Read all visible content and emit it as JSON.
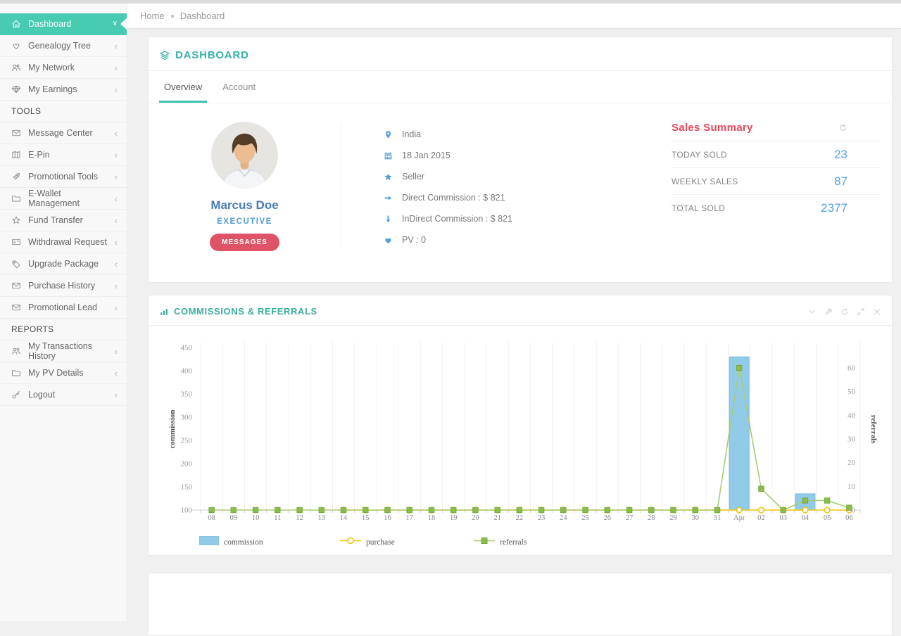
{
  "topbar": {
    "breadcrumb": [
      "Home",
      "Dashboard"
    ]
  },
  "sidebar": {
    "items": [
      {
        "label": "Dashboard",
        "icon": "home-icon",
        "active": true
      },
      {
        "label": "Genealogy Tree",
        "icon": "hand-heart-icon"
      },
      {
        "label": "My Network",
        "icon": "users-icon"
      },
      {
        "label": "My Earnings",
        "icon": "diamond-icon"
      },
      {
        "header": "TOOLS"
      },
      {
        "label": "Message Center",
        "icon": "envelope-icon"
      },
      {
        "label": "E-Pin",
        "icon": "booklet-icon"
      },
      {
        "label": "Promotional Tools",
        "icon": "rocket-icon"
      },
      {
        "label": "E-Wallet Management",
        "icon": "wallet-icon"
      },
      {
        "label": "Fund Transfer",
        "icon": "star-icon"
      },
      {
        "label": "Withdrawal Request",
        "icon": "card-icon"
      },
      {
        "label": "Upgrade Package",
        "icon": "tag-icon"
      },
      {
        "label": "Purchase History",
        "icon": "envelope-icon"
      },
      {
        "label": "Promotional Lead",
        "icon": "envelope-icon"
      },
      {
        "header": "REPORTS"
      },
      {
        "label": "My Transactions History",
        "icon": "users-icon"
      },
      {
        "label": "My PV Details",
        "icon": "wallet-icon"
      },
      {
        "label": "Logout",
        "icon": "key-icon"
      }
    ]
  },
  "page": {
    "title": "DASHBOARD",
    "tabs": [
      {
        "label": "Overview",
        "active": true
      },
      {
        "label": "Account",
        "active": false
      }
    ]
  },
  "profile": {
    "name": "Marcus Doe",
    "rank": "EXECUTIVE",
    "button_label": "MESSAGES",
    "details": [
      {
        "icon": "location-pin-icon",
        "text": "India"
      },
      {
        "icon": "calendar-icon",
        "text": "18 Jan 2015"
      },
      {
        "icon": "star-icon",
        "text": "Seller"
      },
      {
        "icon": "arrow-right-icon",
        "text": "Direct Commission : $ 821"
      },
      {
        "icon": "arrow-down-icon",
        "text": "InDirect Commission : $ 821"
      },
      {
        "icon": "heart-icon",
        "text": "PV : 0"
      }
    ]
  },
  "sales_summary": {
    "title": "Sales Summary",
    "rows": [
      {
        "label": "TODAY SOLD",
        "value": "23"
      },
      {
        "label": "WEEKLY SALES",
        "value": "87"
      },
      {
        "label": "TOTAL SOLD",
        "value": "2377"
      }
    ]
  },
  "chart_panel": {
    "title": "COMMISSIONS & REFERRALS",
    "controls": [
      "chevron-down-icon",
      "wrench-icon",
      "refresh-icon",
      "expand-icon",
      "close-icon"
    ]
  },
  "chart_data": {
    "type": "bar+line dual-axis",
    "categories": [
      "08",
      "09",
      "10",
      "11",
      "12",
      "13",
      "14",
      "15",
      "16",
      "17",
      "18",
      "19",
      "20",
      "21",
      "22",
      "23",
      "24",
      "25",
      "26",
      "27",
      "28",
      "29",
      "30",
      "31",
      "Apr",
      "02",
      "03",
      "04",
      "05",
      "06"
    ],
    "series": [
      {
        "name": "commission",
        "type": "bar",
        "axis": "left",
        "color": "#92cbe8",
        "border": "#79bcdf",
        "values": [
          0,
          0,
          0,
          0,
          0,
          0,
          0,
          0,
          0,
          0,
          0,
          0,
          0,
          0,
          0,
          0,
          0,
          0,
          0,
          0,
          0,
          0,
          0,
          0,
          430,
          0,
          0,
          135,
          0,
          0
        ]
      },
      {
        "name": "purchase",
        "type": "line",
        "axis": "right",
        "marker": "circle-open",
        "color": "#f1c40f",
        "values": [
          null,
          null,
          null,
          null,
          null,
          null,
          0,
          0,
          0,
          0,
          0,
          0,
          0,
          0,
          0,
          0,
          0,
          0,
          0,
          0,
          0,
          0,
          0,
          0,
          0,
          0,
          0,
          0,
          0,
          0
        ]
      },
      {
        "name": "referrals",
        "type": "line",
        "axis": "right",
        "marker": "square",
        "color": "#8bbd4d",
        "line_color": "#a8cc73",
        "values": [
          0,
          0,
          0,
          0,
          0,
          0,
          0,
          0,
          0,
          0,
          0,
          0,
          0,
          0,
          0,
          0,
          0,
          0,
          0,
          0,
          0,
          0,
          0,
          0,
          60,
          9,
          0,
          4,
          4,
          1
        ]
      }
    ],
    "ylabel_left": "commission",
    "ylabel_right": "referrals",
    "ylim_left": [
      100,
      450
    ],
    "yticks_left": [
      100,
      150,
      200,
      250,
      300,
      350,
      400,
      450
    ],
    "ylim_right": [
      0,
      68.6
    ],
    "yticks_right": [
      0,
      10,
      20,
      30,
      40,
      50,
      60
    ],
    "grid": "vertical",
    "legend_position": "bottom",
    "legend": [
      "commission",
      "purchase",
      "referrals"
    ]
  }
}
